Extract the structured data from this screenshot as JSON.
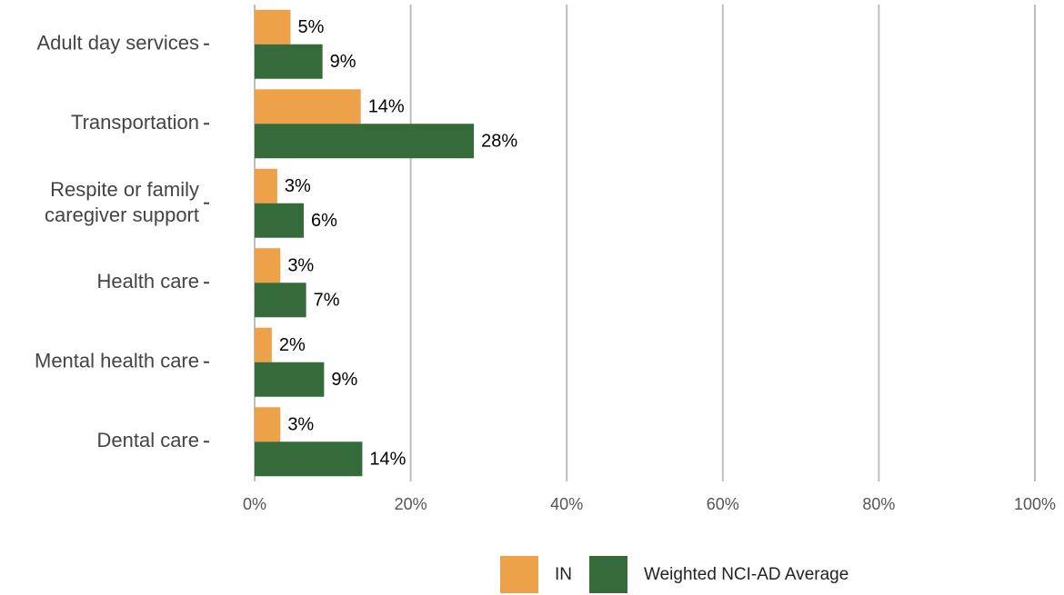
{
  "chart_data": {
    "type": "bar",
    "orientation": "horizontal",
    "categories": [
      "Adult day services",
      "Transportation",
      "Respite or family\ncaregiver support",
      "Health care",
      "Mental health care",
      "Dental care"
    ],
    "series": [
      {
        "name": "IN",
        "color": "#eda24a",
        "values": [
          4.6,
          13.6,
          2.9,
          3.3,
          2.2,
          3.3
        ],
        "value_labels": [
          "5%",
          "14%",
          "3%",
          "3%",
          "2%",
          "3%"
        ]
      },
      {
        "name": "Weighted NCI-AD Average",
        "color": "#356b3a",
        "values": [
          8.7,
          28.1,
          6.3,
          6.6,
          8.9,
          13.8
        ],
        "value_labels": [
          "9%",
          "28%",
          "6%",
          "7%",
          "9%",
          "14%"
        ]
      }
    ],
    "xlim": [
      0,
      100
    ],
    "xticks": [
      {
        "value": 0,
        "label": "0%"
      },
      {
        "value": 20,
        "label": "20%"
      },
      {
        "value": 40,
        "label": "40%"
      },
      {
        "value": 60,
        "label": "60%"
      },
      {
        "value": 80,
        "label": "80%"
      },
      {
        "value": 100,
        "label": "100%"
      }
    ],
    "grid": true,
    "legend": "bottom"
  }
}
